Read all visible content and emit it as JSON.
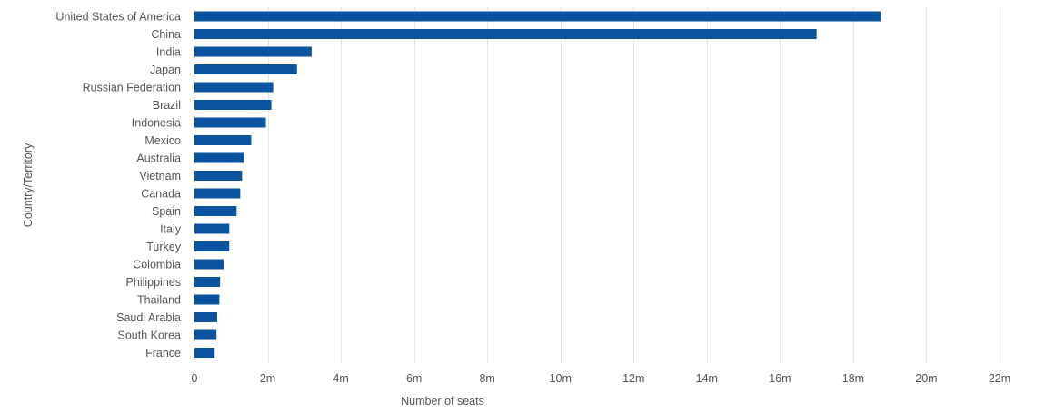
{
  "chart_data": {
    "type": "bar",
    "orientation": "horizontal",
    "title": "",
    "xlabel": "Number of seats",
    "ylabel": "Country/Territory",
    "categories": [
      "United States of America",
      "China",
      "India",
      "Japan",
      "Russian Federation",
      "Brazil",
      "Indonesia",
      "Mexico",
      "Australia",
      "Vietnam",
      "Canada",
      "Spain",
      "Italy",
      "Turkey",
      "Colombia",
      "Philippines",
      "Thailand",
      "Saudi Arabia",
      "South Korea",
      "France"
    ],
    "values": [
      18.75,
      17.0,
      3.2,
      2.8,
      2.15,
      2.1,
      1.95,
      1.55,
      1.35,
      1.3,
      1.25,
      1.15,
      0.95,
      0.95,
      0.8,
      0.7,
      0.68,
      0.62,
      0.6,
      0.55
    ],
    "value_unit": "millions of seats",
    "xlim": [
      0,
      22
    ],
    "xticks": [
      0,
      2,
      4,
      6,
      8,
      10,
      12,
      14,
      16,
      18,
      20,
      22
    ],
    "xtick_labels": [
      "0",
      "2m",
      "4m",
      "6m",
      "8m",
      "10m",
      "12m",
      "14m",
      "16m",
      "18m",
      "20m",
      "22m"
    ],
    "grid": true,
    "legend": "none",
    "bar_color": "#0a53a1",
    "grid_color": "#e6e6e6",
    "text_color": "#555555"
  }
}
